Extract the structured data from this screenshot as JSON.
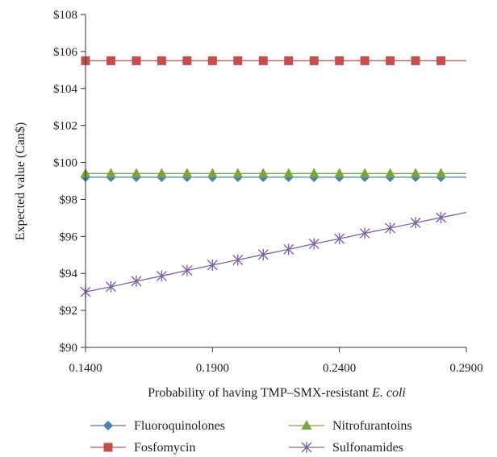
{
  "chart_data": {
    "type": "line",
    "xlabel_prefix": "Probability of having TMP–SMX-resistant ",
    "xlabel_italic": "E. coli",
    "ylabel": "Expected value (Can$)",
    "xlim": [
      0.14,
      0.29
    ],
    "ylim": [
      90,
      108
    ],
    "x_ticks": [
      0.14,
      0.19,
      0.24,
      0.29
    ],
    "x_tick_labels": [
      "0.1400",
      "0.1900",
      "0.2400",
      "0.2900"
    ],
    "y_ticks": [
      90,
      92,
      94,
      96,
      98,
      100,
      102,
      104,
      106,
      108
    ],
    "y_tick_labels": [
      "$90",
      "$92",
      "$94",
      "$96",
      "$98",
      "$100",
      "$102",
      "$104",
      "$106",
      "$108"
    ],
    "x": [
      0.14,
      0.15,
      0.16,
      0.17,
      0.18,
      0.19,
      0.2,
      0.21,
      0.22,
      0.23,
      0.24,
      0.25,
      0.26,
      0.27,
      0.28
    ],
    "line_end_x": 0.29,
    "series": [
      {
        "name": "Fluoroquinolones",
        "color": "#4a7ebb",
        "marker": "diamond",
        "values": [
          99.2,
          99.2,
          99.2,
          99.2,
          99.2,
          99.2,
          99.2,
          99.2,
          99.2,
          99.2,
          99.2,
          99.2,
          99.2,
          99.2,
          99.2
        ],
        "end_value": 99.2
      },
      {
        "name": "Fosfomycin",
        "color": "#c0504d",
        "marker": "square",
        "values": [
          105.5,
          105.5,
          105.5,
          105.5,
          105.5,
          105.5,
          105.5,
          105.5,
          105.5,
          105.5,
          105.5,
          105.5,
          105.5,
          105.5,
          105.5
        ],
        "end_value": 105.5
      },
      {
        "name": "Nitrofurantoins",
        "color": "#77a640",
        "marker": "triangle",
        "values": [
          99.4,
          99.4,
          99.4,
          99.4,
          99.4,
          99.4,
          99.4,
          99.4,
          99.4,
          99.4,
          99.4,
          99.4,
          99.4,
          99.4,
          99.4
        ],
        "end_value": 99.4
      },
      {
        "name": "Sulfonamides",
        "color": "#8064a2",
        "marker": "star",
        "values": [
          93.0,
          93.28,
          93.58,
          93.86,
          94.16,
          94.45,
          94.73,
          95.02,
          95.3,
          95.6,
          95.88,
          96.17,
          96.45,
          96.74,
          97.02
        ],
        "end_value": 97.3
      }
    ],
    "legend": {
      "placement": "bottom",
      "columns": 2
    },
    "grid": false
  }
}
